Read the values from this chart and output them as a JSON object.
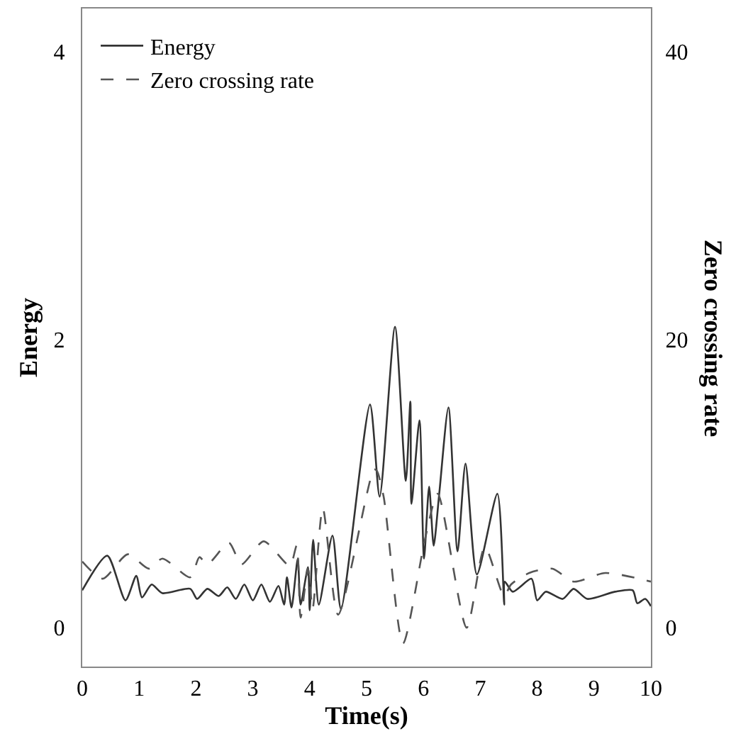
{
  "chart_data": {
    "type": "line",
    "xlabel": "Time(s)",
    "ylabel": "Energy",
    "y2label": "Zero crossing rate",
    "xlim": [
      0,
      10
    ],
    "xticks": [
      0,
      1,
      2,
      3,
      4,
      5,
      6,
      7,
      8,
      9,
      10
    ],
    "ylim": [
      -0.27,
      4.3
    ],
    "yticks": [
      0,
      2,
      4
    ],
    "y2lim": [
      -2.7,
      43
    ],
    "y2ticks": [
      0,
      20,
      40
    ],
    "grid": false,
    "legend": "top left",
    "series": [
      {
        "name": "Energy",
        "color": "#333333",
        "line_style": "solid",
        "x": [
          0,
          0.44,
          0.76,
          0.95,
          1.05,
          1.22,
          1.41,
          1.9,
          2.02,
          2.2,
          2.4,
          2.55,
          2.7,
          2.85,
          3.0,
          3.15,
          3.3,
          3.45,
          3.55,
          3.6,
          3.68,
          3.79,
          3.84,
          3.97,
          4.0,
          4.06,
          4.16,
          4.4,
          4.55,
          5.06,
          5.23,
          5.5,
          5.69,
          5.77,
          5.79,
          5.93,
          6.01,
          6.1,
          6.18,
          6.28,
          6.44,
          6.6,
          6.74,
          6.94,
          7.3,
          7.42,
          7.43,
          7.57,
          7.9,
          8.0,
          8.15,
          8.45,
          8.64,
          8.88,
          9.37,
          9.68,
          9.76,
          9.9,
          10
        ],
        "values": [
          0.26,
          0.5,
          0.19,
          0.36,
          0.21,
          0.3,
          0.24,
          0.27,
          0.2,
          0.27,
          0.22,
          0.28,
          0.2,
          0.3,
          0.19,
          0.3,
          0.18,
          0.29,
          0.16,
          0.35,
          0.14,
          0.48,
          0.16,
          0.42,
          0.12,
          0.61,
          0.16,
          0.64,
          0.13,
          1.55,
          0.91,
          2.09,
          1.02,
          1.57,
          0.86,
          1.44,
          0.48,
          0.98,
          0.57,
          0.94,
          1.53,
          0.53,
          1.14,
          0.37,
          0.93,
          0.16,
          0.32,
          0.25,
          0.34,
          0.19,
          0.25,
          0.2,
          0.27,
          0.2,
          0.25,
          0.26,
          0.17,
          0.2,
          0.15
        ]
      },
      {
        "name": "Zero crossing rate",
        "color": "#555555",
        "line_style": "dashed",
        "axis": "y2",
        "x": [
          0,
          0.36,
          0.8,
          1.17,
          1.41,
          1.9,
          2.06,
          2.2,
          2.58,
          2.8,
          3.19,
          3.65,
          3.77,
          3.84,
          3.97,
          4.05,
          4.23,
          4.5,
          5.13,
          5.18,
          5.3,
          5.64,
          6.03,
          6.25,
          6.76,
          7.08,
          7.42,
          7.54,
          7.86,
          8.27,
          8.64,
          9.2,
          10
        ],
        "values": [
          4.6,
          3.4,
          5.1,
          4.1,
          4.8,
          3.5,
          4.9,
          4.4,
          5.9,
          4.4,
          6.0,
          4.3,
          5.7,
          0.7,
          4.1,
          1.3,
          8.3,
          0.9,
          11.0,
          10.9,
          9.1,
          -1.1,
          6.2,
          9.3,
          0,
          5.6,
          2.2,
          3.0,
          3.8,
          4.1,
          3.2,
          3.8,
          3.2
        ]
      }
    ]
  }
}
